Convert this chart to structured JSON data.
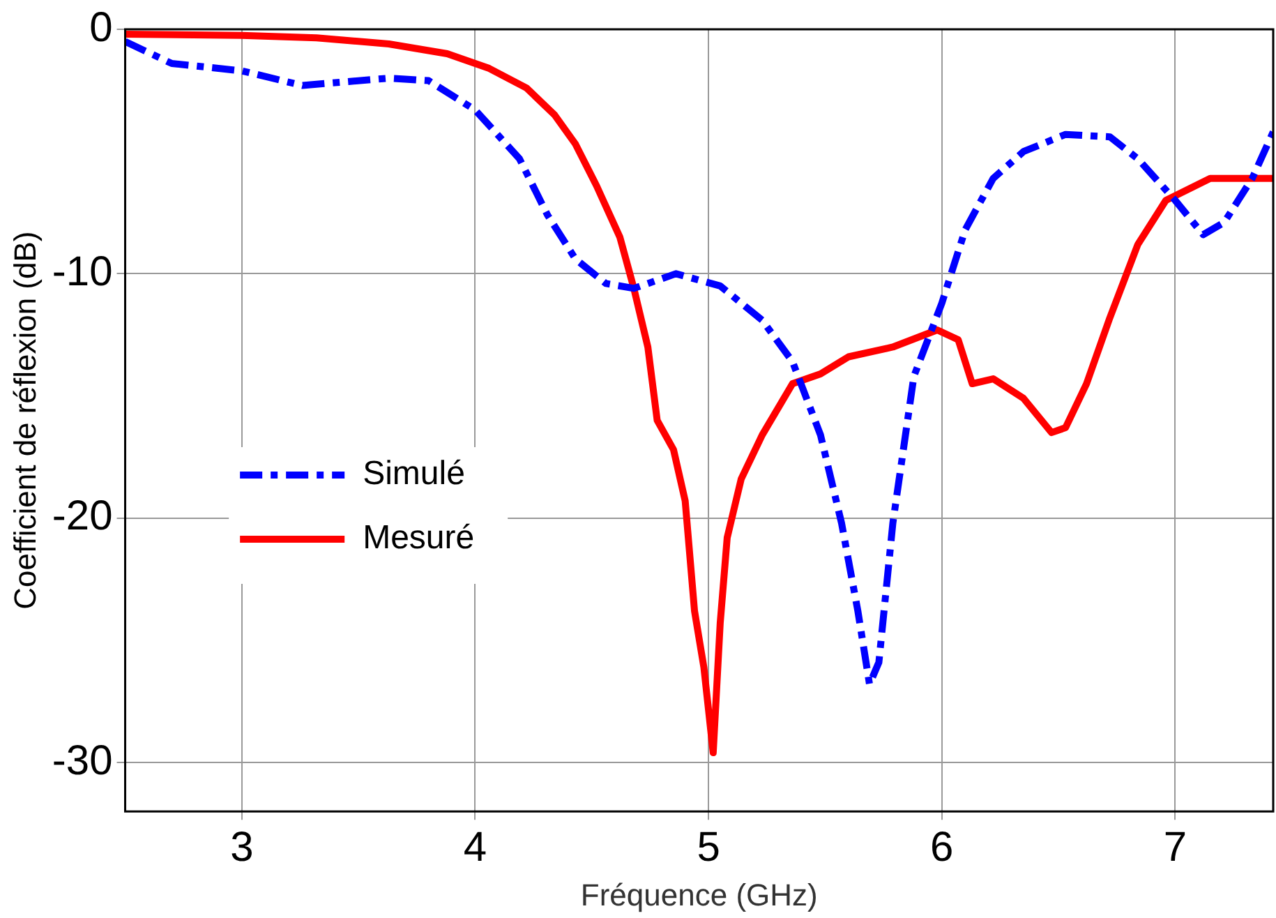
{
  "chart_data": {
    "type": "line",
    "xlabel": "Fréquence (GHz)",
    "ylabel": "Coefficient de réflexion (dB)",
    "xlim": [
      2.5,
      7.42
    ],
    "xticks": [
      3,
      4,
      5,
      6,
      7
    ],
    "ylim": [
      -32,
      0
    ],
    "yticks": [
      0,
      -10,
      -20,
      -30
    ],
    "grid": true,
    "legend": "left",
    "marker": "none",
    "series": [
      {
        "name": "Simulé",
        "color": "#0000ff",
        "line_style": "dashed",
        "x": [
          2.5,
          2.7,
          3.0,
          3.26,
          3.38,
          3.63,
          3.8,
          4.0,
          4.19,
          4.31,
          4.43,
          4.56,
          4.68,
          4.86,
          5.05,
          5.23,
          5.36,
          5.48,
          5.57,
          5.64,
          5.69,
          5.73,
          5.79,
          5.88,
          6.0,
          6.1,
          6.22,
          6.35,
          6.53,
          6.72,
          6.84,
          7.0,
          7.12,
          7.21,
          7.33,
          7.42
        ],
        "values": [
          -0.5,
          -1.4,
          -1.7,
          -2.3,
          -2.2,
          -2.0,
          -2.1,
          -3.3,
          -5.3,
          -7.6,
          -9.4,
          -10.4,
          -10.6,
          -10.0,
          -10.5,
          -11.9,
          -13.6,
          -16.6,
          -20.2,
          -23.8,
          -26.8,
          -25.9,
          -20.2,
          -14.2,
          -11.2,
          -8.2,
          -6.1,
          -5.0,
          -4.3,
          -4.4,
          -5.3,
          -7.0,
          -8.4,
          -7.9,
          -6.1,
          -4.2
        ]
      },
      {
        "name": "Mesuré",
        "color": "#ff0000",
        "line_style": "solid",
        "x": [
          2.5,
          3.0,
          3.32,
          3.63,
          3.88,
          4.06,
          4.22,
          4.34,
          4.43,
          4.52,
          4.62,
          4.68,
          4.74,
          4.78,
          4.85,
          4.9,
          4.94,
          4.98,
          5.02,
          5.05,
          5.08,
          5.14,
          5.23,
          5.36,
          5.48,
          5.6,
          5.79,
          5.98,
          6.07,
          6.13,
          6.22,
          6.35,
          6.47,
          6.53,
          6.62,
          6.72,
          6.84,
          6.96,
          7.15,
          7.42
        ],
        "values": [
          -0.2,
          -0.25,
          -0.35,
          -0.6,
          -1.0,
          -1.6,
          -2.4,
          -3.5,
          -4.7,
          -6.4,
          -8.5,
          -10.6,
          -13.0,
          -16.0,
          -17.2,
          -19.3,
          -23.8,
          -26.1,
          -29.6,
          -24.3,
          -20.8,
          -18.4,
          -16.6,
          -14.5,
          -14.1,
          -13.4,
          -13.0,
          -12.3,
          -12.7,
          -14.5,
          -14.3,
          -15.1,
          -16.5,
          -16.3,
          -14.5,
          -11.8,
          -8.8,
          -7.0,
          -6.1,
          -6.1
        ]
      }
    ]
  }
}
